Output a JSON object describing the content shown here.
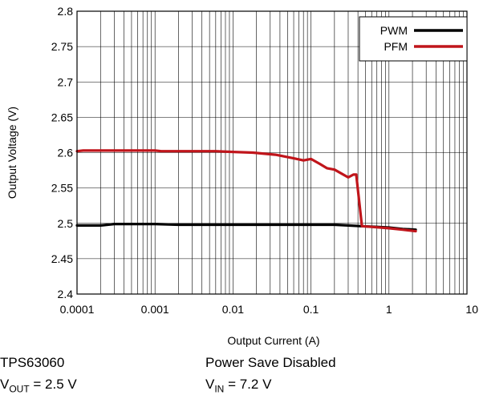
{
  "chart_data": {
    "type": "line",
    "title": "",
    "xlabel": "Output Current (A)",
    "ylabel": "Output Voltage (V)",
    "xscale": "log",
    "xlim": [
      0.0001,
      10
    ],
    "ylim": [
      2.4,
      2.8
    ],
    "x_ticks": [
      "0.0001",
      "0.001",
      "0.01",
      "0.1",
      "1",
      "10"
    ],
    "y_ticks": [
      "2.4",
      "2.45",
      "2.5",
      "2.55",
      "2.6",
      "2.65",
      "2.7",
      "2.75",
      "2.8"
    ],
    "grid": true,
    "legend_position": "top-right",
    "series": [
      {
        "name": "PWM",
        "color": "#000000",
        "points": [
          [
            0.0001,
            2.497
          ],
          [
            0.0002,
            2.497
          ],
          [
            0.0003,
            2.499
          ],
          [
            0.0005,
            2.499
          ],
          [
            0.001,
            2.499
          ],
          [
            0.002,
            2.498
          ],
          [
            0.005,
            2.498
          ],
          [
            0.01,
            2.498
          ],
          [
            0.02,
            2.498
          ],
          [
            0.05,
            2.498
          ],
          [
            0.1,
            2.498
          ],
          [
            0.2,
            2.498
          ],
          [
            0.3,
            2.497
          ],
          [
            0.45,
            2.496
          ],
          [
            0.7,
            2.495
          ],
          [
            1.0,
            2.494
          ],
          [
            1.5,
            2.492
          ],
          [
            2.2,
            2.491
          ]
        ]
      },
      {
        "name": "PFM",
        "color": "#c0151b",
        "points": [
          [
            0.0001,
            2.602
          ],
          [
            0.00012,
            2.603
          ],
          [
            0.0002,
            2.603
          ],
          [
            0.0005,
            2.603
          ],
          [
            0.001,
            2.603
          ],
          [
            0.0012,
            2.602
          ],
          [
            0.003,
            2.602
          ],
          [
            0.006,
            2.602
          ],
          [
            0.01,
            2.601
          ],
          [
            0.018,
            2.6
          ],
          [
            0.035,
            2.597
          ],
          [
            0.06,
            2.592
          ],
          [
            0.08,
            2.589
          ],
          [
            0.1,
            2.591
          ],
          [
            0.13,
            2.584
          ],
          [
            0.16,
            2.578
          ],
          [
            0.2,
            2.576
          ],
          [
            0.3,
            2.565
          ],
          [
            0.35,
            2.569
          ],
          [
            0.38,
            2.569
          ],
          [
            0.45,
            2.496
          ],
          [
            0.6,
            2.495
          ],
          [
            1.0,
            2.493
          ],
          [
            1.5,
            2.491
          ],
          [
            2.2,
            2.489
          ]
        ]
      }
    ],
    "notes": {
      "left_line1": "TPS63060",
      "left_line2_pre": "V",
      "left_line2_sub": "OUT",
      "left_line2_post": " = 2.5 V",
      "right_line1": "Power Save Disabled",
      "right_line2_pre": "V",
      "right_line2_sub": "IN",
      "right_line2_post": " = 7.2 V"
    }
  }
}
